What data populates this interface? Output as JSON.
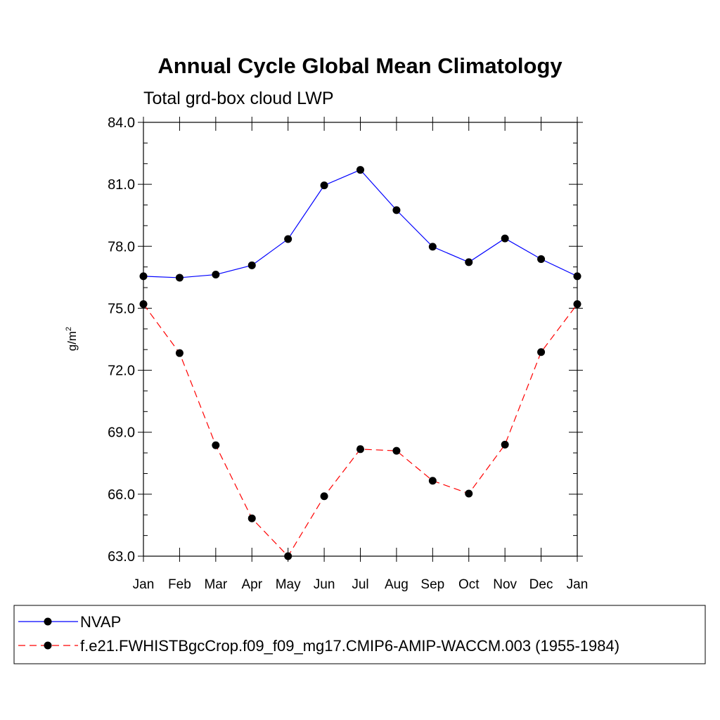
{
  "chart_data": {
    "type": "line",
    "title": "Annual Cycle Global Mean Climatology",
    "subtitle": "Total grd-box cloud LWP",
    "xlabel": "",
    "ylabel": "g/m",
    "ylabel_superscript": "2",
    "categories": [
      "Jan",
      "Feb",
      "Mar",
      "Apr",
      "May",
      "Jun",
      "Jul",
      "Aug",
      "Sep",
      "Oct",
      "Nov",
      "Dec",
      "Jan"
    ],
    "ylim": [
      63.0,
      84.0
    ],
    "yticks": [
      "63.0",
      "66.0",
      "69.0",
      "72.0",
      "75.0",
      "78.0",
      "81.0",
      "84.0"
    ],
    "series": [
      {
        "name": "NVAP",
        "color": "#0000ff",
        "dash": "solid",
        "values": [
          76.55,
          76.48,
          76.63,
          77.08,
          78.35,
          80.95,
          81.7,
          79.75,
          77.98,
          77.23,
          78.38,
          77.38,
          76.55
        ]
      },
      {
        "name": "f.e21.FWHISTBgcCrop.f09_f09_mg17.CMIP6-AMIP-WACCM.003 (1955-1984)",
        "color": "#ff0000",
        "dash": "dashed",
        "values": [
          75.2,
          72.83,
          68.37,
          64.83,
          63.0,
          65.9,
          68.18,
          68.1,
          66.65,
          66.03,
          68.4,
          72.88,
          75.2
        ]
      }
    ],
    "legend_position": "bottom"
  }
}
